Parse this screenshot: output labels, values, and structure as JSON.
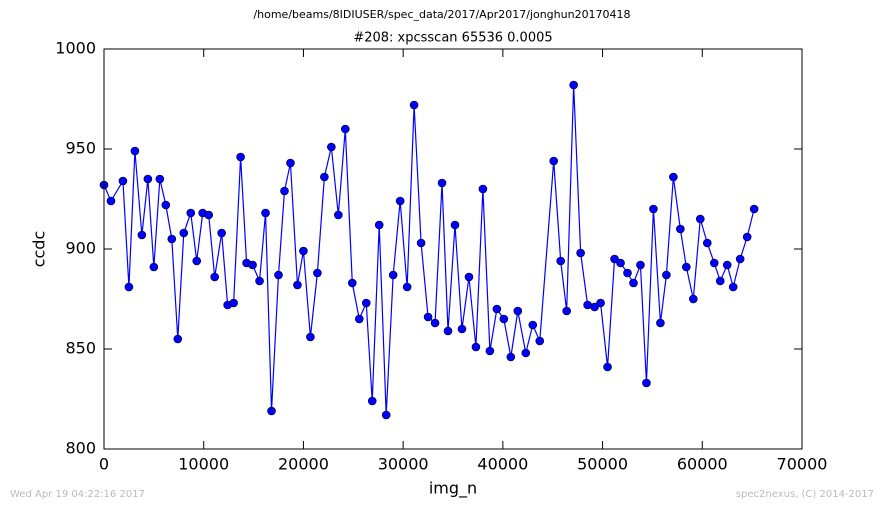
{
  "chart_data": {
    "type": "line",
    "suptitle": "/home/beams/8IDIUSER/spec_data/2017/Apr2017/jonghun20170418",
    "title": "#208: xpcsscan 65536 0.0005",
    "xlabel": "img_n",
    "ylabel": "ccdc",
    "footer_left": "Wed Apr 19 04:22:16 2017",
    "footer_right": "spec2nexus, (C) 2014-2017",
    "color": "#0000ff",
    "x": [
      0,
      700,
      1900,
      2500,
      3100,
      3800,
      4400,
      5000,
      5600,
      6200,
      6800,
      7400,
      8000,
      8700,
      9300,
      9900,
      10500,
      11100,
      11800,
      12400,
      13000,
      13700,
      14300,
      14900,
      15600,
      16200,
      16800,
      17500,
      18100,
      18700,
      19400,
      20000,
      20700,
      21400,
      22100,
      22800,
      23500,
      24200,
      24900,
      25600,
      26300,
      26900,
      27600,
      28300,
      29000,
      29700,
      30400,
      31100,
      31800,
      32500,
      33200,
      33900,
      34500,
      35200,
      35900,
      36600,
      37300,
      38000,
      38700,
      39400,
      40100,
      40800,
      41500,
      42300,
      43000,
      43700,
      45100,
      45800,
      46400,
      47100,
      47800,
      48500,
      49200,
      49800,
      50500,
      51200,
      51800,
      52500,
      53100,
      53800,
      54400,
      55100,
      55800,
      56400,
      57100,
      57800,
      58400,
      59100,
      59800,
      60500,
      61200,
      61800,
      62500,
      63100,
      63800,
      64500,
      65200
    ],
    "values": [
      932,
      924,
      934,
      881,
      949,
      907,
      935,
      891,
      935,
      922,
      905,
      855,
      908,
      918,
      894,
      918,
      917,
      886,
      908,
      872,
      873,
      946,
      893,
      892,
      884,
      918,
      819,
      887,
      929,
      943,
      882,
      899,
      856,
      888,
      936,
      951,
      917,
      960,
      883,
      865,
      873,
      824,
      912,
      817,
      887,
      924,
      881,
      972,
      903,
      866,
      863,
      933,
      859,
      912,
      860,
      886,
      851,
      930,
      849,
      870,
      865,
      846,
      869,
      848,
      862,
      854,
      944,
      894,
      869,
      982,
      898,
      872,
      871,
      873,
      841,
      895,
      893,
      888,
      883,
      892,
      833,
      920,
      863,
      887,
      936,
      910,
      891,
      875,
      915,
      903,
      893,
      884,
      892,
      881,
      895,
      906,
      920
    ],
    "xlim": [
      0,
      70000
    ],
    "ylim": [
      800,
      1000
    ],
    "xticks": [
      0,
      10000,
      20000,
      30000,
      40000,
      50000,
      60000,
      70000
    ],
    "yticks": [
      800,
      850,
      900,
      950,
      1000
    ]
  }
}
